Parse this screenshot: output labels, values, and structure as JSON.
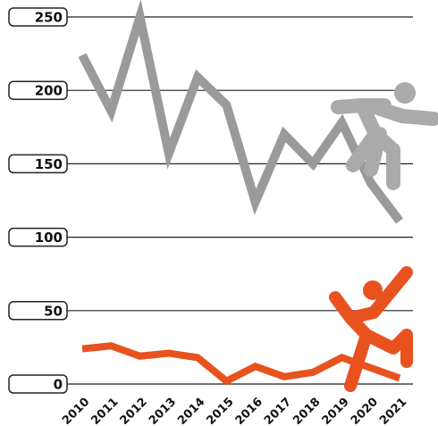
{
  "chart_data": {
    "type": "line",
    "categories": [
      "2010",
      "2011",
      "2012",
      "2013",
      "2014",
      "2015",
      "2016",
      "2017",
      "2018",
      "2019",
      "2020",
      "2021"
    ],
    "series": [
      {
        "color": "#9a9a9a",
        "values": [
          224,
          186,
          250,
          157,
          209,
          190,
          124,
          170,
          150,
          178,
          137,
          111
        ]
      },
      {
        "color": "#e8521e",
        "values": [
          24,
          26,
          19,
          21,
          18,
          2,
          12,
          5,
          8,
          18,
          11,
          4
        ]
      }
    ],
    "ylim": [
      0,
      250
    ],
    "yticks": [
      0,
      50,
      100,
      150,
      200,
      250
    ],
    "grid": true
  }
}
